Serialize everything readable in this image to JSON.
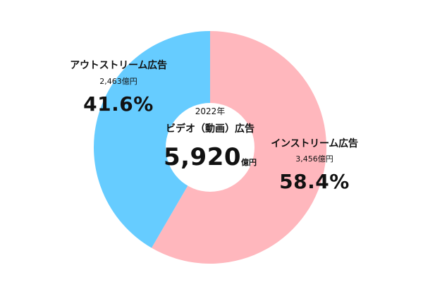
{
  "chart_data": {
    "type": "pie",
    "donut": true,
    "center": {
      "year": "2022年",
      "title": "ビデオ（動画）広告",
      "total": "5,920",
      "unit": "億円"
    },
    "segments": [
      {
        "name": "インストリーム広告",
        "amount_label": "3,456億円",
        "value": 3456,
        "percent_label": "58.4%",
        "percent": 58.4,
        "color": "#FFB7BD"
      },
      {
        "name": "アウトストリーム広告",
        "amount_label": "2,463億円",
        "value": 2463,
        "percent_label": "41.6%",
        "percent": 41.6,
        "color": "#66CCFF"
      }
    ]
  }
}
